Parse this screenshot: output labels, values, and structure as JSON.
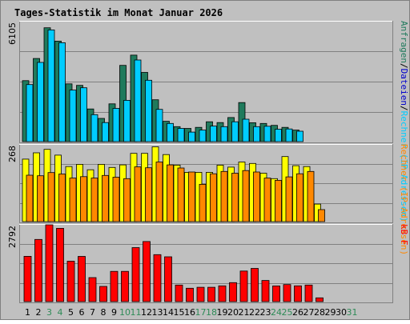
{
  "title": "Tages-Statistik im Monat Januar 2026",
  "colors": {
    "background": "#c0c0c0",
    "frame": "#808080",
    "title": "#0000cc",
    "gridline": "#808080",
    "hits": "#1f7a5c",
    "files": "#00ccff",
    "sites": "#ffff00",
    "visits": "#ff8800",
    "kbytes": "#ff0000",
    "weekday_label": "#000000",
    "weekend_label": "#2e8b57",
    "label_anfragen": "#1f7a5c",
    "label_dateien": "#0000cc",
    "label_rechner": "#ff8800",
    "label_kb": "#ff0000"
  },
  "chart_data": [
    {
      "type": "bar",
      "name": "top",
      "x": [
        1,
        2,
        3,
        4,
        5,
        6,
        7,
        8,
        9,
        10,
        11,
        12,
        13,
        14,
        15,
        16,
        17,
        18,
        19,
        20,
        21,
        22,
        23,
        24,
        25,
        26,
        27,
        28,
        29,
        30,
        31
      ],
      "ymax_label": "6105",
      "ylim": [
        0,
        6105
      ],
      "right_label_parts": [
        {
          "text": "Anfragen",
          "color_key": "label_anfragen"
        },
        {
          "text": "/",
          "color_key": "weekday_label"
        },
        {
          "text": "Dateien",
          "color_key": "label_dateien"
        },
        {
          "text": "/",
          "color_key": "weekday_label"
        },
        {
          "text": "Rechner (IP-Adressen)",
          "color_key": "files"
        }
      ],
      "series": [
        {
          "color_key": "hits",
          "values": [
            3100,
            4230,
            5790,
            5110,
            2940,
            2860,
            1660,
            1180,
            1920,
            3880,
            4400,
            3520,
            2130,
            1035,
            760,
            670,
            725,
            1010,
            970,
            1225,
            1985,
            960,
            925,
            825,
            725,
            585,
            0,
            0,
            0,
            0,
            0
          ]
        },
        {
          "color_key": "files",
          "values": [
            2900,
            4030,
            5680,
            5030,
            2620,
            2740,
            1370,
            970,
            1690,
            2100,
            4150,
            3120,
            1640,
            925,
            670,
            485,
            585,
            790,
            760,
            1010,
            1140,
            760,
            780,
            630,
            645,
            530,
            0,
            0,
            0,
            0,
            0
          ]
        }
      ]
    },
    {
      "type": "bar",
      "name": "middle",
      "x": [
        1,
        2,
        3,
        4,
        5,
        6,
        7,
        8,
        9,
        10,
        11,
        12,
        13,
        14,
        15,
        16,
        17,
        18,
        19,
        20,
        21,
        22,
        23,
        24,
        25,
        26,
        27,
        28,
        29,
        30,
        31
      ],
      "ymax_label": "268",
      "ylim": [
        0,
        268
      ],
      "right_label_parts": [
        {
          "text": "Rechner (IP-Adressen)",
          "color_key": "label_rechner"
        }
      ],
      "series": [
        {
          "color_key": "sites",
          "values": [
            218,
            240,
            252,
            232,
            192,
            200,
            181,
            200,
            189,
            198,
            238,
            238,
            261,
            234,
            197,
            172,
            172,
            172,
            197,
            190,
            208,
            203,
            169,
            150,
            227,
            195,
            192,
            61,
            0,
            0,
            0
          ]
        },
        {
          "color_key": "visits",
          "values": [
            162,
            160,
            171,
            166,
            152,
            157,
            152,
            161,
            155,
            150,
            191,
            188,
            208,
            198,
            187,
            173,
            130,
            167,
            175,
            169,
            178,
            173,
            152,
            144,
            156,
            167,
            175,
            42,
            0,
            0,
            0
          ]
        }
      ]
    },
    {
      "type": "bar",
      "name": "bottom",
      "x": [
        1,
        2,
        3,
        4,
        5,
        6,
        7,
        8,
        9,
        10,
        11,
        12,
        13,
        14,
        15,
        16,
        17,
        18,
        19,
        20,
        21,
        22,
        23,
        24,
        25,
        26,
        27,
        28,
        29,
        30,
        31
      ],
      "ymax_label": "2792",
      "ylim": [
        0,
        2792
      ],
      "right_label_parts": [
        {
          "text": "kB F",
          "color_key": "label_kb"
        }
      ],
      "series": [
        {
          "color_key": "kbytes",
          "values": [
            1645,
            2260,
            2792,
            2664,
            1470,
            1644,
            873,
            553,
            1100,
            1100,
            1964,
            2184,
            1706,
            1630,
            603,
            485,
            522,
            522,
            573,
            690,
            1110,
            1208,
            768,
            571,
            620,
            573,
            603,
            138,
            0,
            0,
            0
          ]
        }
      ]
    }
  ],
  "weekend_days": [
    3,
    4,
    10,
    11,
    17,
    18,
    24,
    25,
    31
  ]
}
